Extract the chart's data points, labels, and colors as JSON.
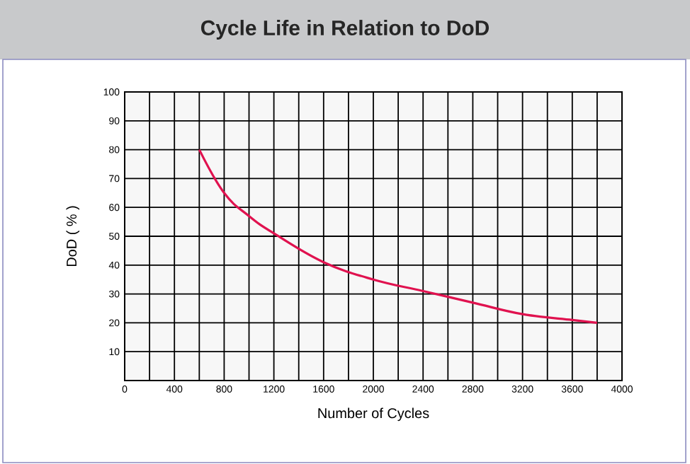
{
  "chart_data": {
    "type": "line",
    "title": "Cycle Life in Relation to DoD",
    "xlabel": "Number of Cycles",
    "ylabel": "DoD ( % )",
    "x": [
      600,
      800,
      1000,
      1200,
      1600,
      2000,
      2400,
      2800,
      3200,
      3600,
      3800
    ],
    "series": [
      {
        "color": "#e0124f",
        "values": [
          80,
          65,
          57,
          51,
          41,
          35,
          31,
          27,
          23,
          21,
          20
        ]
      }
    ],
    "xlim": [
      0,
      4000
    ],
    "ylim": [
      0,
      100
    ],
    "xticks": [
      0,
      {
        "value": 200,
        "label": null
      },
      400,
      {
        "value": 600,
        "label": null
      },
      800,
      {
        "value": 1000,
        "label": null
      },
      1200,
      {
        "value": 1400,
        "label": null
      },
      1600,
      {
        "value": 1800,
        "label": null
      },
      2000,
      {
        "value": 2200,
        "label": null
      },
      2400,
      {
        "value": 2600,
        "label": null
      },
      2800,
      {
        "value": 3000,
        "label": null
      },
      3200,
      {
        "value": 3400,
        "label": null
      },
      3600,
      {
        "value": 3800,
        "label": null
      },
      4000
    ],
    "yticks": [
      10,
      20,
      30,
      40,
      50,
      60,
      70,
      80,
      90,
      100
    ],
    "grid": true,
    "marker": "none",
    "line_style": "solid"
  }
}
